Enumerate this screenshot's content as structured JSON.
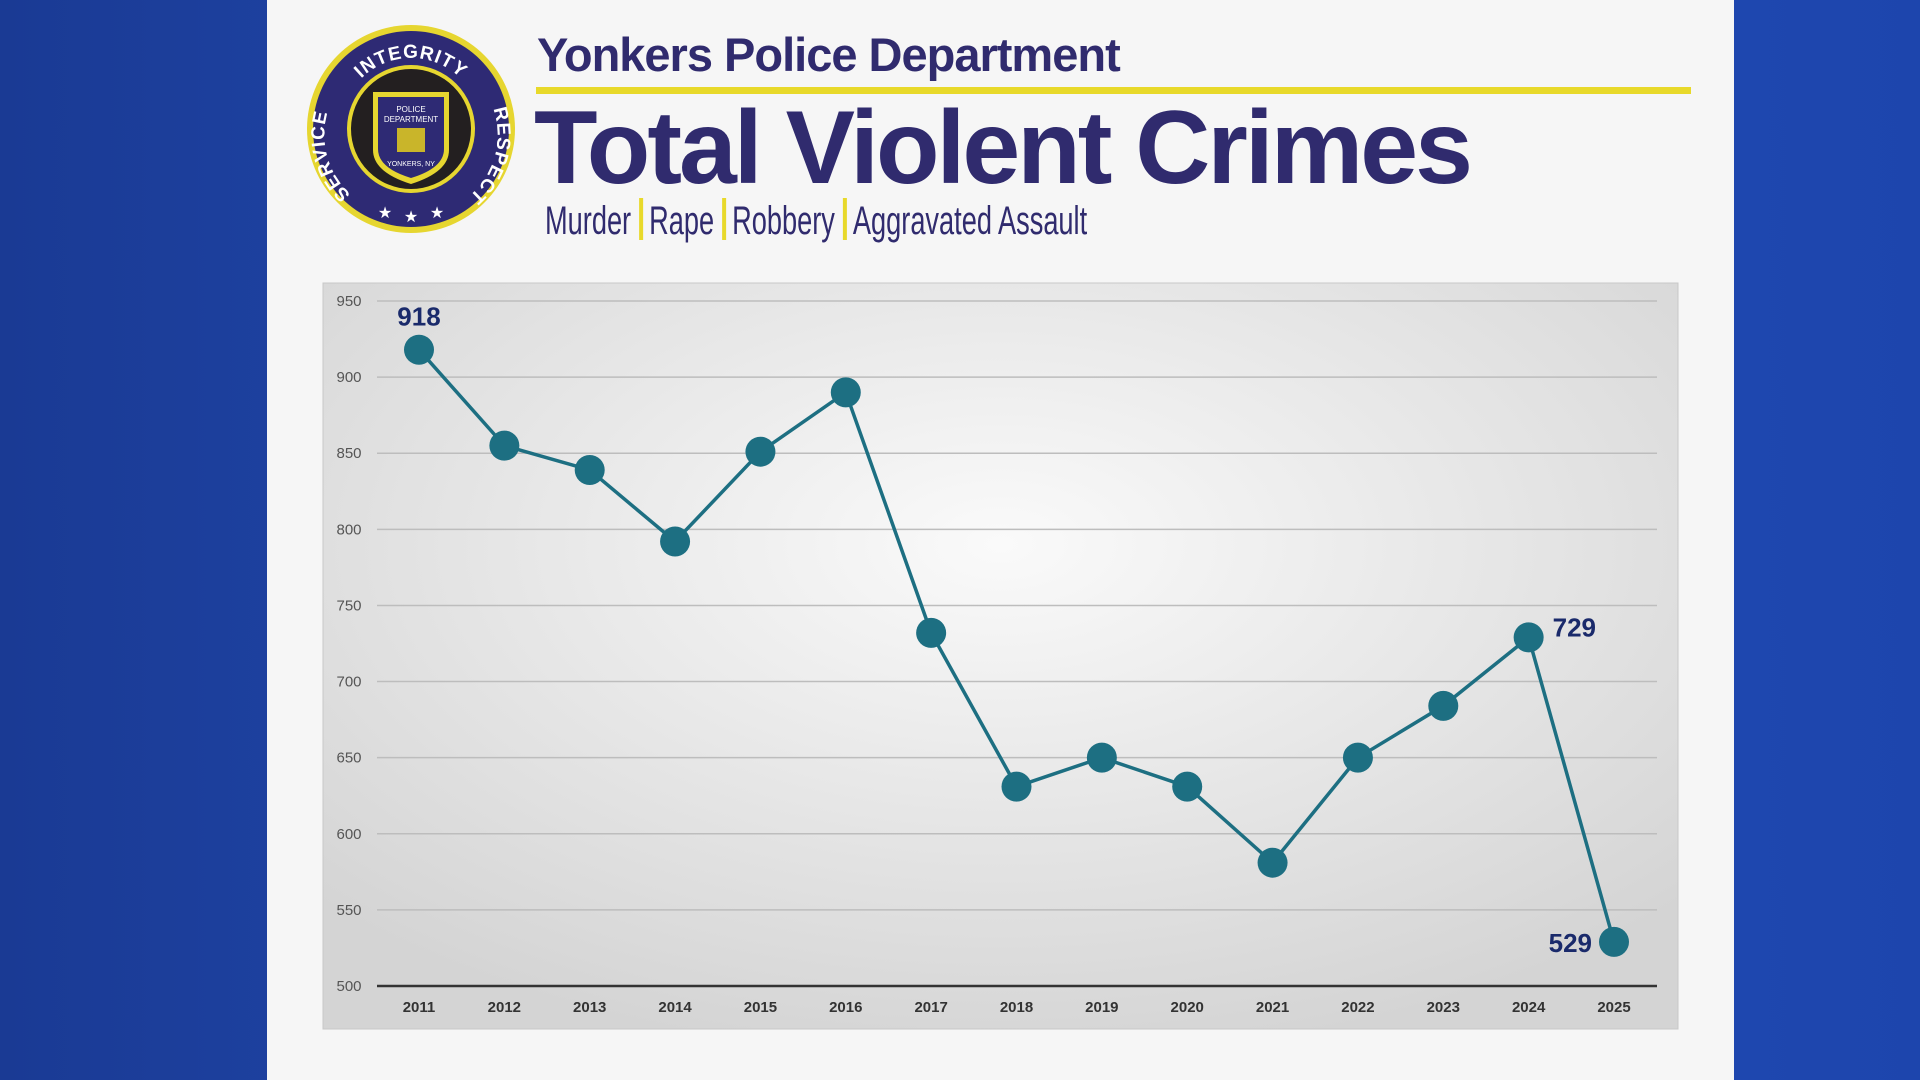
{
  "logo": {
    "top": "INTEGRITY",
    "left": "SERVICE",
    "right": "RESPECT",
    "center_top": "POLICE",
    "center_mid": "DEPARTMENT",
    "bottom": "YONKERS, NY"
  },
  "chart_data": {
    "type": "line",
    "department": "Yonkers Police Department",
    "title": "Total Violent Crimes",
    "subtitle": [
      "Murder",
      "Rape",
      "Robbery",
      "Aggravated Assault"
    ],
    "categories": [
      "2011",
      "2012",
      "2013",
      "2014",
      "2015",
      "2016",
      "2017",
      "2018",
      "2019",
      "2020",
      "2021",
      "2022",
      "2023",
      "2024",
      "2025"
    ],
    "series": [
      {
        "name": "Total Violent Crimes",
        "color": "#1d6f82",
        "values": [
          918,
          855,
          839,
          792,
          851,
          890,
          732,
          631,
          650,
          631,
          581,
          650,
          684,
          729,
          529
        ],
        "value_labels": [
          "918",
          null,
          null,
          null,
          null,
          null,
          null,
          null,
          null,
          null,
          null,
          null,
          null,
          "729",
          "529"
        ]
      }
    ],
    "ylim": [
      500,
      950
    ],
    "yticks": [
      500,
      550,
      600,
      650,
      700,
      750,
      800,
      850,
      900,
      950
    ],
    "grid": true
  }
}
